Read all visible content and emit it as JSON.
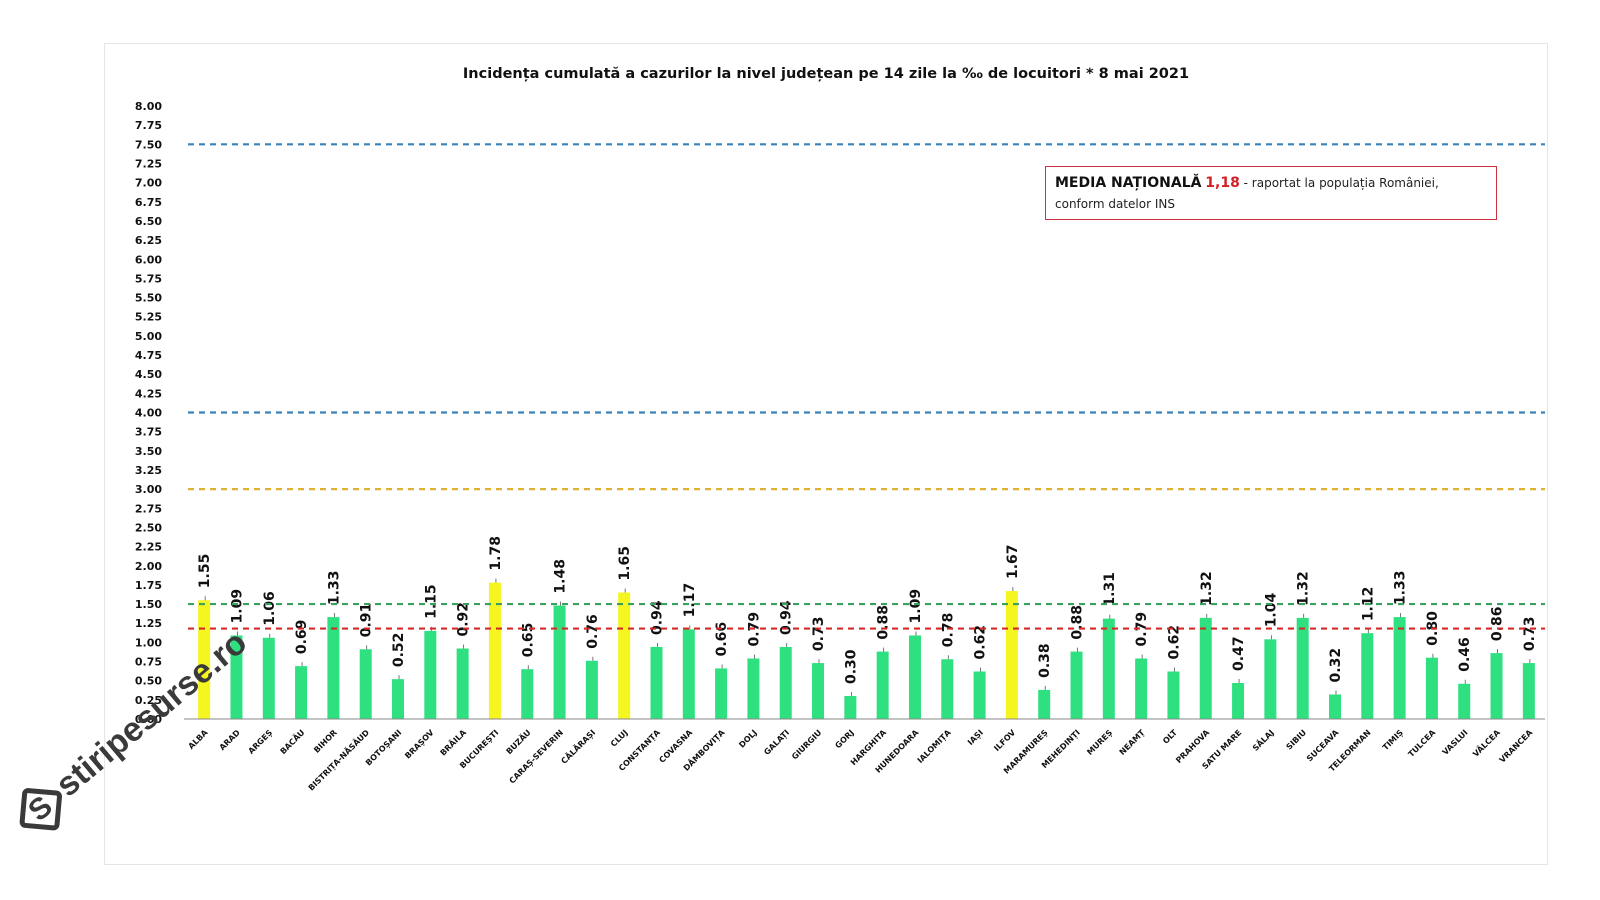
{
  "chart_data": {
    "type": "bar",
    "title": "Incidența cumulată a cazurilor la nivel județean pe 14 zile la ‰ de locuitori *  8 mai 2021",
    "ylim": [
      0,
      8
    ],
    "ytick_step": 0.25,
    "categories": [
      "ALBA",
      "ARAD",
      "ARGEȘ",
      "BACĂU",
      "BIHOR",
      "BISTRIȚA-NĂSĂUD",
      "BOTOȘANI",
      "BRAȘOV",
      "BRĂILA",
      "BUCUREȘTI",
      "BUZĂU",
      "CARAȘ-SEVERIN",
      "CĂLĂRAȘI",
      "CLUJ",
      "CONSTANȚA",
      "COVASNA",
      "DÂMBOVIȚA",
      "DOLJ",
      "GALAȚI",
      "GIURGIU",
      "GORJ",
      "HARGHITA",
      "HUNEDOARA",
      "IALOMIȚA",
      "IAȘI",
      "ILFOV",
      "MARAMUREȘ",
      "MEHEDINȚI",
      "MUREȘ",
      "NEAMȚ",
      "OLT",
      "PRAHOVA",
      "SATU MARE",
      "SĂLAJ",
      "SIBIU",
      "SUCEAVA",
      "TELEORMAN",
      "TIMIȘ",
      "TULCEA",
      "VASLUI",
      "VÂLCEA",
      "VRANCEA"
    ],
    "values": [
      1.55,
      1.09,
      1.06,
      0.69,
      1.33,
      0.91,
      0.52,
      1.15,
      0.92,
      1.78,
      0.65,
      1.48,
      0.76,
      1.65,
      0.94,
      1.17,
      0.66,
      0.79,
      0.94,
      0.73,
      0.3,
      0.88,
      1.09,
      0.78,
      0.62,
      1.67,
      0.38,
      0.88,
      1.31,
      0.79,
      0.62,
      1.32,
      0.47,
      1.04,
      1.32,
      0.32,
      1.12,
      1.33,
      0.8,
      0.46,
      0.86,
      0.73
    ],
    "value_labels": [
      "1.55",
      "1.09",
      "1.06",
      "0.69",
      "1.33",
      "0.91",
      "0.52",
      "1.15",
      "0.92",
      "1.78",
      "0.65",
      "1.48",
      "0.76",
      "1.65",
      "0.94",
      "1.17",
      "0.66",
      "0.79",
      "0.94",
      "0.73",
      "0.30",
      "0.88",
      "1.09",
      "0.78",
      "0.62",
      "1.67",
      "0.38",
      "0.88",
      "1.31",
      "0.79",
      "0.62",
      "1.32",
      "0.47",
      "1.04",
      "1.32",
      "0.32",
      "1.12",
      "1.33",
      "0.80",
      "0.46",
      "0.86",
      "0.73"
    ],
    "highlighted": [
      "ALBA",
      "BUCUREȘTI",
      "CLUJ",
      "ILFOV"
    ],
    "colors": {
      "bar": "#2ee080",
      "highlight": "#f5f51f",
      "axis_text": "#111111"
    },
    "reference_lines": [
      {
        "value": 7.5,
        "color": "#3b82b8"
      },
      {
        "value": 4.0,
        "color": "#3b82b8"
      },
      {
        "value": 3.0,
        "color": "#e0b032"
      },
      {
        "value": 1.5,
        "color": "#3aa060"
      },
      {
        "value": 1.18,
        "color": "#d42a2a"
      }
    ],
    "grid": false,
    "legend": {
      "position": "top-right",
      "label": "MEDIA NAȚIONALĂ",
      "value": "1,18",
      "text_after": " - raportat la populația României,",
      "text_line2": "conform datelor INS"
    }
  },
  "watermark": "stiripesurse.ro"
}
